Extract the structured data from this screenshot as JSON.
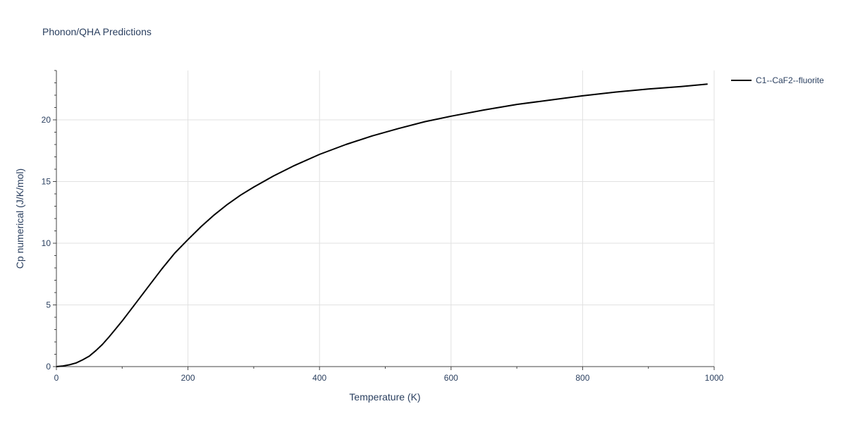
{
  "chart_data": {
    "type": "line",
    "title": "Phonon/QHA Predictions",
    "xlabel": "Temperature (K)",
    "ylabel": "Cp numerical (J/K/mol)",
    "xlim": [
      0,
      1000
    ],
    "ylim": [
      0,
      24
    ],
    "x_ticks": [
      0,
      200,
      400,
      600,
      800,
      1000
    ],
    "y_ticks": [
      0,
      5,
      10,
      15,
      20
    ],
    "grid": true,
    "legend_position": "top-right",
    "series": [
      {
        "name": "C1--CaF2--fluorite",
        "color": "#000000",
        "x": [
          0,
          10,
          20,
          30,
          40,
          50,
          60,
          70,
          80,
          90,
          100,
          120,
          140,
          160,
          180,
          200,
          220,
          240,
          260,
          280,
          300,
          330,
          360,
          400,
          440,
          480,
          520,
          560,
          600,
          650,
          700,
          750,
          800,
          850,
          900,
          950,
          990
        ],
        "y": [
          0,
          0.05,
          0.15,
          0.3,
          0.55,
          0.85,
          1.3,
          1.8,
          2.4,
          3.05,
          3.7,
          5.1,
          6.5,
          7.9,
          9.2,
          10.3,
          11.35,
          12.3,
          13.15,
          13.9,
          14.55,
          15.45,
          16.25,
          17.2,
          18.0,
          18.7,
          19.3,
          19.85,
          20.3,
          20.8,
          21.25,
          21.6,
          21.95,
          22.25,
          22.5,
          22.7,
          22.9
        ]
      }
    ]
  }
}
